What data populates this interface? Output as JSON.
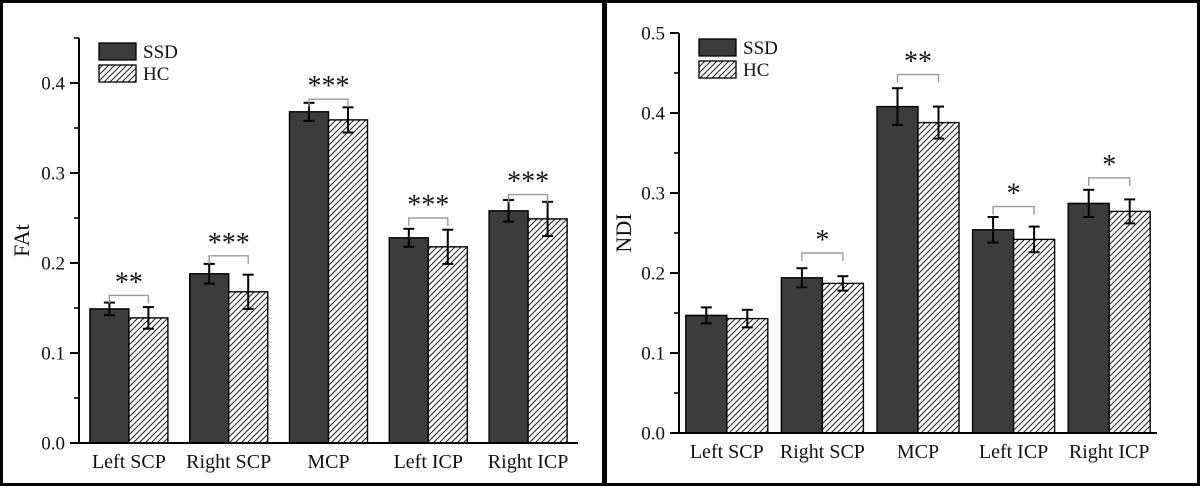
{
  "figure": {
    "background": "#ffffff",
    "border_color": "#000000",
    "bar_fill_ssd": "#3c3c3c",
    "hatch_line_color": "#222222",
    "bracket_color": "#999999",
    "axis_color": "#000000"
  },
  "legend": {
    "ssd_label": "SSD",
    "hc_label": "HC"
  },
  "chart_data": [
    {
      "type": "bar",
      "panel": "left",
      "title": "",
      "xlabel": "",
      "ylabel": "FAt",
      "ylim": [
        0,
        0.45
      ],
      "yticks": [
        0.0,
        0.1,
        0.2,
        0.3,
        0.4
      ],
      "ytick_labels": [
        "0.0",
        "0.1",
        "0.2",
        "0.3",
        "0.4"
      ],
      "minor_tick_step": 0.05,
      "grid": false,
      "legend_position": "top-left",
      "categories": [
        "Left SCP",
        "Right SCP",
        "MCP",
        "Left ICP",
        "Right ICP"
      ],
      "series": [
        {
          "name": "SSD",
          "style": "solid",
          "values": [
            0.149,
            0.188,
            0.368,
            0.228,
            0.258
          ],
          "errors": [
            0.007,
            0.011,
            0.01,
            0.01,
            0.012
          ]
        },
        {
          "name": "HC",
          "style": "diagonal-hatch",
          "values": [
            0.139,
            0.168,
            0.359,
            0.218,
            0.249
          ],
          "errors": [
            0.012,
            0.019,
            0.014,
            0.019,
            0.019
          ]
        }
      ],
      "significance_labels": [
        "**",
        "***",
        "***",
        "***",
        "***"
      ],
      "significance_bracket_values": [
        0.164,
        0.208,
        0.382,
        0.25,
        0.276
      ]
    },
    {
      "type": "bar",
      "panel": "right",
      "title": "",
      "xlabel": "",
      "ylabel": "NDI",
      "ylim": [
        0,
        0.5
      ],
      "yticks": [
        0.0,
        0.1,
        0.2,
        0.3,
        0.4,
        0.5
      ],
      "ytick_labels": [
        "0.0",
        "0.1",
        "0.2",
        "0.3",
        "0.4",
        "0.5"
      ],
      "minor_tick_step": 0.05,
      "grid": false,
      "legend_position": "top-left",
      "categories": [
        "Left SCP",
        "Right SCP",
        "MCP",
        "Left ICP",
        "Right ICP"
      ],
      "series": [
        {
          "name": "SSD",
          "style": "solid",
          "values": [
            0.147,
            0.194,
            0.408,
            0.254,
            0.287
          ],
          "errors": [
            0.01,
            0.012,
            0.023,
            0.016,
            0.017
          ]
        },
        {
          "name": "HC",
          "style": "diagonal-hatch",
          "values": [
            0.143,
            0.187,
            0.388,
            0.242,
            0.277
          ],
          "errors": [
            0.011,
            0.009,
            0.02,
            0.016,
            0.015
          ]
        }
      ],
      "significance_labels": [
        null,
        "*",
        "**",
        "*",
        "*"
      ],
      "significance_bracket_values": [
        null,
        0.225,
        0.448,
        0.283,
        0.319
      ]
    }
  ]
}
